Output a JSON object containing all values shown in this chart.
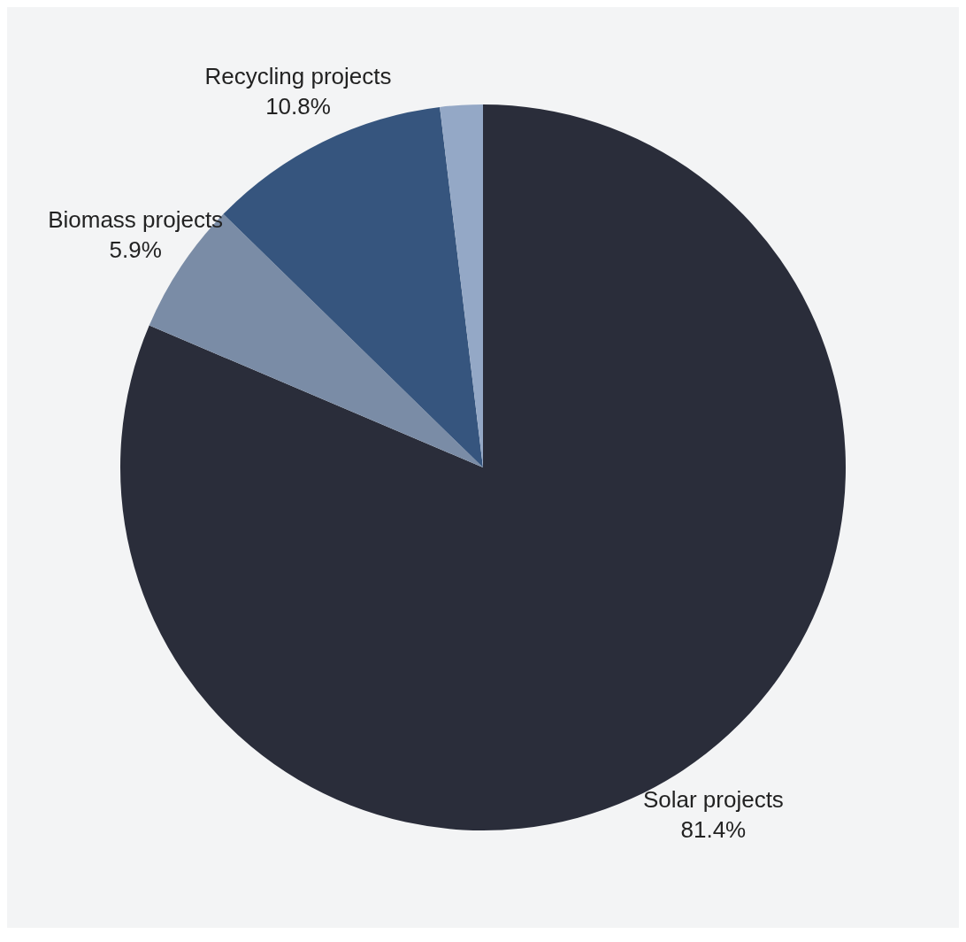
{
  "chart_data": {
    "type": "pie",
    "categories": [
      "Solar projects",
      "Biomass projects",
      "Recycling projects",
      null
    ],
    "values": [
      81.4,
      5.9,
      10.8,
      1.9
    ],
    "value_labels": [
      "81.4%",
      "5.9%",
      "10.8%",
      null
    ],
    "colors": [
      "#2a2d3a",
      "#7a8ca6",
      "#36557e",
      "#94a8c6"
    ],
    "legend": false
  }
}
